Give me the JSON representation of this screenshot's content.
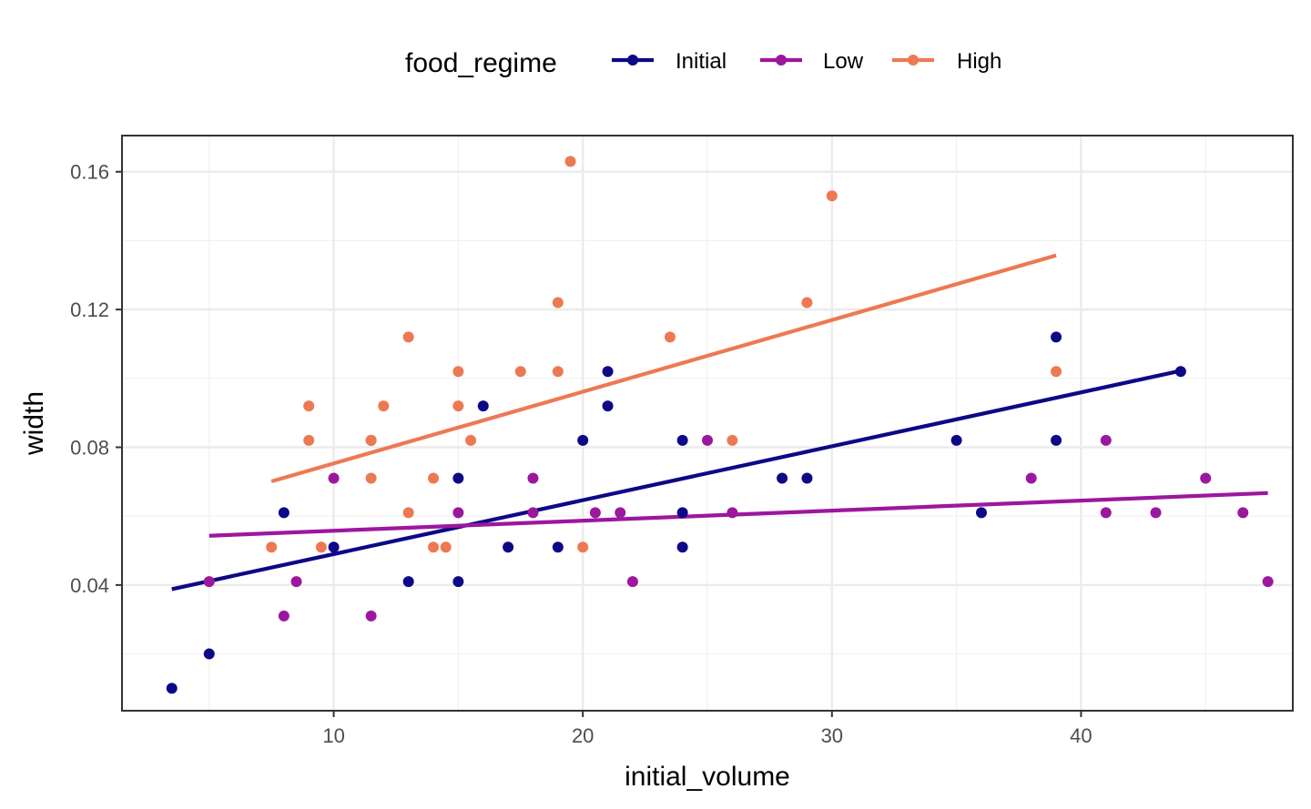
{
  "chart_data": {
    "type": "scatter",
    "xlabel": "initial_volume",
    "ylabel": "width",
    "xlim": [
      1.5,
      48.5
    ],
    "ylim": [
      0.0035,
      0.1705
    ],
    "x_ticks": [
      10,
      20,
      30,
      40
    ],
    "x_tick_labels": [
      "10",
      "20",
      "30",
      "40"
    ],
    "y_ticks": [
      0.04,
      0.08,
      0.12,
      0.16
    ],
    "y_tick_labels": [
      "0.04",
      "0.08",
      "0.12",
      "0.16"
    ],
    "x_minor_ticks": [
      5,
      15,
      25,
      35,
      45
    ],
    "y_minor_ticks": [
      0.02,
      0.06,
      0.1,
      0.14
    ],
    "grid": true,
    "legend": {
      "title": "food_regime",
      "position": "top"
    },
    "series": [
      {
        "name": "Initial",
        "color": "#0d0887",
        "points": [
          [
            3.5,
            0.01
          ],
          [
            5,
            0.02
          ],
          [
            8,
            0.061
          ],
          [
            10,
            0.051
          ],
          [
            13,
            0.041
          ],
          [
            15,
            0.071
          ],
          [
            15,
            0.041
          ],
          [
            16,
            0.092
          ],
          [
            17,
            0.051
          ],
          [
            19,
            0.051
          ],
          [
            20,
            0.082
          ],
          [
            21,
            0.102
          ],
          [
            21,
            0.092
          ],
          [
            24,
            0.082
          ],
          [
            24,
            0.061
          ],
          [
            24,
            0.051
          ],
          [
            28,
            0.071
          ],
          [
            29,
            0.071
          ],
          [
            35,
            0.082
          ],
          [
            36,
            0.061
          ],
          [
            39,
            0.112
          ],
          [
            39,
            0.082
          ],
          [
            44,
            0.102
          ]
        ],
        "trend": [
          [
            3.5,
            0.0388
          ],
          [
            44,
            0.1022
          ]
        ]
      },
      {
        "name": "Low",
        "color": "#9c179e",
        "points": [
          [
            5,
            0.041
          ],
          [
            8,
            0.031
          ],
          [
            8.5,
            0.041
          ],
          [
            10,
            0.071
          ],
          [
            11.5,
            0.082
          ],
          [
            11.5,
            0.031
          ],
          [
            15,
            0.061
          ],
          [
            18,
            0.071
          ],
          [
            18,
            0.061
          ],
          [
            20.5,
            0.061
          ],
          [
            21.5,
            0.061
          ],
          [
            22,
            0.041
          ],
          [
            25,
            0.082
          ],
          [
            26,
            0.061
          ],
          [
            38,
            0.071
          ],
          [
            41,
            0.082
          ],
          [
            41,
            0.061
          ],
          [
            43,
            0.061
          ],
          [
            45,
            0.071
          ],
          [
            46.5,
            0.061
          ],
          [
            47.5,
            0.041
          ]
        ],
        "trend": [
          [
            5,
            0.0543
          ],
          [
            47.5,
            0.0667
          ]
        ]
      },
      {
        "name": "High",
        "color": "#ed7953",
        "points": [
          [
            7.5,
            0.051
          ],
          [
            9,
            0.092
          ],
          [
            9,
            0.082
          ],
          [
            9.5,
            0.051
          ],
          [
            11.5,
            0.082
          ],
          [
            11.5,
            0.071
          ],
          [
            12,
            0.092
          ],
          [
            13,
            0.112
          ],
          [
            13,
            0.061
          ],
          [
            14,
            0.071
          ],
          [
            14,
            0.051
          ],
          [
            14.5,
            0.051
          ],
          [
            15,
            0.102
          ],
          [
            15,
            0.092
          ],
          [
            15.5,
            0.082
          ],
          [
            17.5,
            0.102
          ],
          [
            19,
            0.122
          ],
          [
            19,
            0.102
          ],
          [
            19.5,
            0.163
          ],
          [
            20,
            0.051
          ],
          [
            23.5,
            0.112
          ],
          [
            26,
            0.082
          ],
          [
            29,
            0.122
          ],
          [
            30,
            0.153
          ],
          [
            39,
            0.102
          ]
        ],
        "trend": [
          [
            7.5,
            0.0701
          ],
          [
            39,
            0.1357
          ]
        ]
      }
    ]
  }
}
